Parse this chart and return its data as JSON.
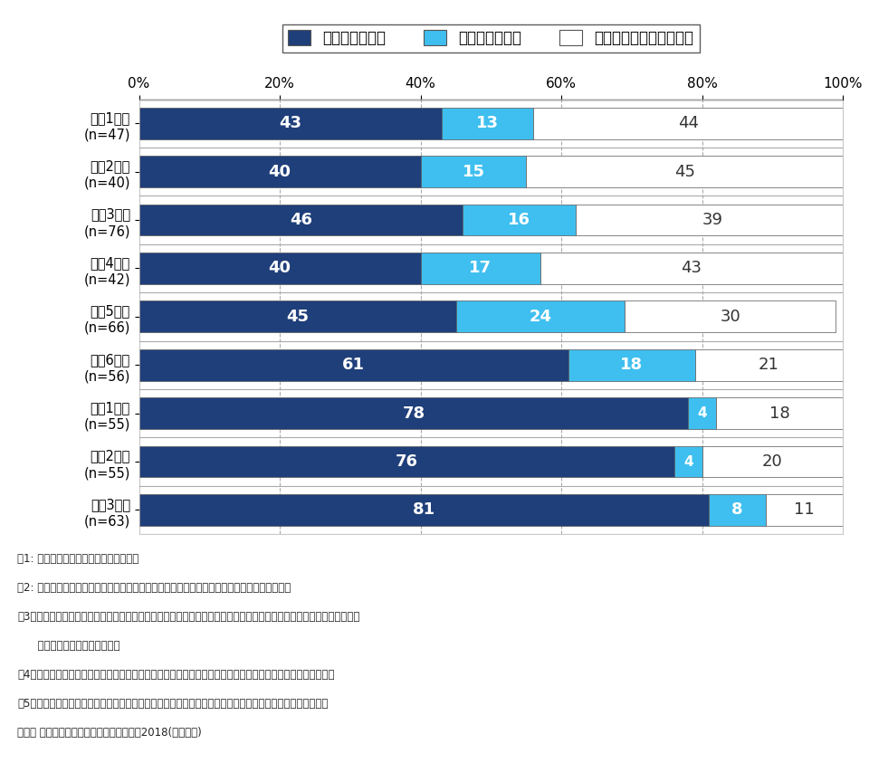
{
  "categories": [
    "小兤1年生\n(n=47)",
    "小兤2年生\n(n=40)",
    "小兤3年生\n(n=76)",
    "小兤4年生\n(n=42)",
    "小兤5年生\n(n=66)",
    "小兤6年生\n(n=56)",
    "中兤1年生\n(n=55)",
    "中兤2年生\n(n=55)",
    "中兤3年生\n(n=63)"
  ],
  "smartphone": [
    43,
    40,
    46,
    40,
    45,
    61,
    78,
    76,
    81
  ],
  "feature_phone": [
    13,
    15,
    16,
    17,
    24,
    18,
    4,
    4,
    8
  ],
  "no_phone": [
    44,
    45,
    39,
    43,
    30,
    21,
    18,
    20,
    11
  ],
  "color_smartphone": "#1f3f7a",
  "color_feature": "#3fbfef",
  "color_no_phone": "#ffffff",
  "legend_labels": [
    "スマートフォン",
    "従来のケータイ",
    "スマホ・ケータイ未所有"
  ],
  "notes": [
    "注1: 関東１都６県在住の保護者が回答。",
    "注2: 家族などで共有しているものを含め，子どもが利用している機器の有無を保護者が回答。",
    "注3：「スマートフォン」は回線契約をしているスマートフォン，いわゆる格安スマホ，キッズスマホ，回線契約なしの",
    "      スマートフォンを含み集計。",
    "注4：「ケータイ」はスマートフォン以外のいわゆるガラケー，フィーチャーフォン，キッズケータイをさす。",
    "注5：「スマートフォン」と「従来のケータイ」をどちらも利用している場合は，スマホ利用者として集計。",
    "出所： 子どものケータイ利用に関する調査2018(訪問留置)"
  ],
  "bar_edge_color": "#555555",
  "bar_linewidth": 0.5,
  "grid_color": "#aaaaaa",
  "axis_top_color": "#333333"
}
